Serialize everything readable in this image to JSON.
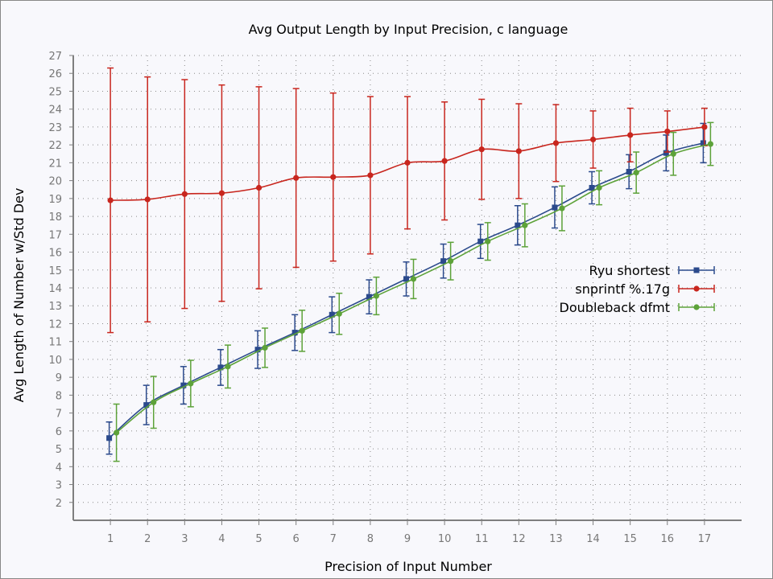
{
  "chart_data": {
    "type": "line",
    "title": "Avg Output Length by Input Precision, c language",
    "xlabel": "Precision of Input Number",
    "ylabel": "Avg Length of Number w/Std Dev",
    "x": [
      1,
      2,
      3,
      4,
      5,
      6,
      7,
      8,
      9,
      10,
      11,
      12,
      13,
      14,
      15,
      16,
      17
    ],
    "xlim": [
      0,
      18
    ],
    "ylim": [
      1,
      27
    ],
    "yticks": [
      2,
      3,
      4,
      5,
      6,
      7,
      8,
      9,
      10,
      11,
      12,
      13,
      14,
      15,
      16,
      17,
      18,
      19,
      20,
      21,
      22,
      23,
      24,
      25,
      26,
      27
    ],
    "grid": true,
    "legend_position": "right",
    "error_bars": true,
    "series": [
      {
        "name": "Ryu shortest",
        "color": "#2b4a8c",
        "marker": "square",
        "values": [
          5.6,
          7.45,
          8.55,
          9.55,
          10.55,
          11.5,
          12.5,
          13.5,
          14.5,
          15.5,
          16.6,
          17.5,
          18.5,
          19.6,
          20.5,
          21.55,
          22.1
        ],
        "errors": [
          0.9,
          1.1,
          1.05,
          1.0,
          1.05,
          1.0,
          1.0,
          0.95,
          0.95,
          0.95,
          0.95,
          1.1,
          1.15,
          0.9,
          0.95,
          1.0,
          1.1
        ]
      },
      {
        "name": "snprintf %.17g",
        "color": "#c8261e",
        "marker": "circle",
        "values": [
          18.9,
          18.95,
          19.25,
          19.3,
          19.6,
          20.15,
          20.2,
          20.3,
          21.0,
          21.1,
          21.75,
          21.65,
          22.1,
          22.3,
          22.55,
          22.75,
          23.0
        ],
        "errors": [
          7.4,
          6.85,
          6.4,
          6.05,
          5.65,
          5.0,
          4.7,
          4.4,
          3.7,
          3.3,
          2.8,
          2.65,
          2.15,
          1.6,
          1.5,
          1.15,
          1.05
        ]
      },
      {
        "name": "Doubleback dfmt",
        "color": "#5da239",
        "marker": "circle",
        "values": [
          5.9,
          7.6,
          8.65,
          9.6,
          10.65,
          11.6,
          12.55,
          13.55,
          14.5,
          15.5,
          16.6,
          17.5,
          18.45,
          19.6,
          20.45,
          21.5,
          22.05
        ],
        "errors": [
          1.6,
          1.45,
          1.3,
          1.2,
          1.1,
          1.15,
          1.15,
          1.05,
          1.1,
          1.05,
          1.05,
          1.2,
          1.25,
          0.95,
          1.15,
          1.2,
          1.2
        ]
      }
    ]
  }
}
